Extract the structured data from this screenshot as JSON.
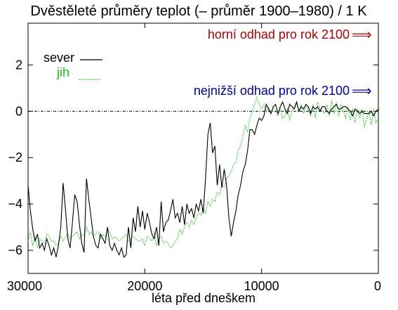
{
  "chart_data": {
    "type": "line",
    "title": "Dvěstěleté průměry teplot (– průměr 1900–1980) / 1 K",
    "xlabel": "léta před dneškem",
    "ylabel": "",
    "x_reversed": true,
    "xlim": [
      30000,
      0
    ],
    "ylim": [
      -7,
      3.8
    ],
    "x_ticks": [
      30000,
      20000,
      10000,
      0
    ],
    "x_tick_labels": [
      "30000",
      "20000",
      "10000",
      "0"
    ],
    "y_ticks": [
      2,
      0,
      -2,
      -4,
      -6
    ],
    "y_tick_labels": [
      "2",
      "0",
      "−2",
      "−4",
      "−6"
    ],
    "grid": false,
    "legend_position": "top-left",
    "colors": {
      "sever": "#000000",
      "jih": "#22bb22",
      "upper": "#aa0000",
      "lower": "#000099"
    },
    "annotations": [
      {
        "id": "upper",
        "text": "horní odhad pro rok 2100",
        "arrow": "⟹"
      },
      {
        "id": "lower",
        "text": "nejnižší odhad pro rok 2100",
        "arrow": "⟹"
      }
    ],
    "series": [
      {
        "name": "sever",
        "style": "solid",
        "x": [
          30000,
          29800,
          29600,
          29400,
          29200,
          29000,
          28800,
          28600,
          28400,
          28200,
          28000,
          27800,
          27600,
          27400,
          27200,
          27000,
          26800,
          26600,
          26400,
          26200,
          26000,
          25800,
          25600,
          25400,
          25200,
          25000,
          24800,
          24600,
          24400,
          24200,
          24000,
          23800,
          23600,
          23400,
          23200,
          23000,
          22800,
          22600,
          22400,
          22200,
          22000,
          21800,
          21600,
          21400,
          21200,
          21000,
          20800,
          20600,
          20400,
          20200,
          20000,
          19800,
          19600,
          19400,
          19200,
          19000,
          18800,
          18600,
          18400,
          18200,
          18000,
          17800,
          17600,
          17400,
          17200,
          17000,
          16800,
          16600,
          16400,
          16200,
          16000,
          15800,
          15600,
          15400,
          15200,
          15000,
          14800,
          14600,
          14400,
          14200,
          14000,
          13800,
          13600,
          13400,
          13200,
          13000,
          12800,
          12600,
          12400,
          12200,
          12000,
          11800,
          11600,
          11400,
          11200,
          11000,
          10800,
          10600,
          10400,
          10200,
          10000,
          9800,
          9600,
          9400,
          9200,
          9000,
          8800,
          8600,
          8400,
          8200,
          8000,
          7800,
          7600,
          7400,
          7200,
          7000,
          6800,
          6600,
          6400,
          6200,
          6000,
          5800,
          5600,
          5400,
          5200,
          5000,
          4800,
          4600,
          4400,
          4200,
          4000,
          3800,
          3600,
          3400,
          3200,
          3000,
          2800,
          2600,
          2400,
          2200,
          2000,
          1800,
          1600,
          1400,
          1200,
          1000,
          800,
          600,
          400,
          200,
          0
        ],
        "y": [
          -3.2,
          -4.3,
          -5.1,
          -5.6,
          -5.3,
          -5.9,
          -5.7,
          -6.0,
          -5.5,
          -5.8,
          -6.2,
          -5.9,
          -6.3,
          -5.8,
          -5.0,
          -3.1,
          -4.2,
          -5.5,
          -5.9,
          -4.8,
          -3.6,
          -3.9,
          -4.9,
          -5.7,
          -6.1,
          -2.9,
          -3.8,
          -4.6,
          -5.4,
          -5.8,
          -5.9,
          -5.3,
          -5.5,
          -5.7,
          -5.0,
          -5.8,
          -6.0,
          -5.7,
          -6.0,
          -6.2,
          -5.9,
          -6.3,
          -6.2,
          -5.0,
          -5.9,
          -4.6,
          -5.2,
          -4.1,
          -5.0,
          -4.3,
          -5.1,
          -4.4,
          -4.8,
          -5.3,
          -5.5,
          -5.0,
          -5.8,
          -3.9,
          -5.2,
          -4.8,
          -4.7,
          -4.3,
          -3.8,
          -4.6,
          -4.4,
          -4.8,
          -4.1,
          -4.9,
          -4.0,
          -4.4,
          -4.2,
          -4.6,
          -4.0,
          -4.3,
          -3.8,
          -4.4,
          -2.9,
          -1.0,
          -0.5,
          -1.8,
          -1.5,
          -3.2,
          -2.3,
          -3.3,
          -2.5,
          -3.2,
          -4.6,
          -5.4,
          -4.8,
          -4.3,
          -3.6,
          -3.2,
          -2.6,
          -2.3,
          -1.7,
          -0.8,
          -0.8,
          -1.0,
          -0.6,
          -0.3,
          -0.4,
          -0.2,
          0.3,
          0.1,
          -0.1,
          0.2,
          0.3,
          -0.1,
          0.2,
          0.4,
          0.1,
          -0.1,
          0.3,
          0.2,
          0.1,
          0.4,
          0.0,
          0.2,
          0.1,
          0.3,
          0.2,
          -0.1,
          0.2,
          0.1,
          0.2,
          0.0,
          0.2,
          0.2,
          0.0,
          -0.1,
          0.1,
          0.2,
          0.3,
          0.1,
          0.1,
          0.2,
          0.2,
          0.1,
          0.0,
          -0.2,
          0.1,
          0.0,
          -0.1,
          0.0,
          -0.1,
          -0.1,
          -0.1,
          0.0,
          -0.2,
          0.0,
          0.1
        ]
      },
      {
        "name": "jih",
        "style": "dotted",
        "x": [
          30000,
          29800,
          29600,
          29400,
          29200,
          29000,
          28800,
          28600,
          28400,
          28200,
          28000,
          27800,
          27600,
          27400,
          27200,
          27000,
          26800,
          26600,
          26400,
          26200,
          26000,
          25800,
          25600,
          25400,
          25200,
          25000,
          24800,
          24600,
          24400,
          24200,
          24000,
          23800,
          23600,
          23400,
          23200,
          23000,
          22800,
          22600,
          22400,
          22200,
          22000,
          21800,
          21600,
          21400,
          21200,
          21000,
          20800,
          20600,
          20400,
          20200,
          20000,
          19800,
          19600,
          19400,
          19200,
          19000,
          18800,
          18600,
          18400,
          18200,
          18000,
          17800,
          17600,
          17400,
          17200,
          17000,
          16800,
          16600,
          16400,
          16200,
          16000,
          15800,
          15600,
          15400,
          15200,
          15000,
          14800,
          14600,
          14400,
          14200,
          14000,
          13800,
          13600,
          13400,
          13200,
          13000,
          12800,
          12600,
          12400,
          12200,
          12000,
          11800,
          11600,
          11400,
          11200,
          11000,
          10800,
          10600,
          10400,
          10200,
          10000,
          9800,
          9600,
          9400,
          9200,
          9000,
          8800,
          8600,
          8400,
          8200,
          8000,
          7800,
          7600,
          7400,
          7200,
          7000,
          6800,
          6600,
          6400,
          6200,
          6000,
          5800,
          5600,
          5400,
          5200,
          5000,
          4800,
          4600,
          4400,
          4200,
          4000,
          3800,
          3600,
          3400,
          3200,
          3000,
          2800,
          2600,
          2400,
          2200,
          2000,
          1800,
          1600,
          1400,
          1200,
          1000,
          800,
          600,
          400,
          200,
          0
        ],
        "y": [
          -5.6,
          -5.2,
          -5.8,
          -5.4,
          -5.9,
          -5.5,
          -5.6,
          -5.7,
          -5.3,
          -5.4,
          -5.6,
          -5.6,
          -5.8,
          -5.7,
          -5.4,
          -5.6,
          -5.4,
          -5.3,
          -5.5,
          -5.4,
          -5.3,
          -5.2,
          -5.5,
          -5.3,
          -5.4,
          -5.0,
          -5.3,
          -5.2,
          -5.4,
          -5.3,
          -5.2,
          -5.5,
          -5.3,
          -5.4,
          -5.1,
          -5.2,
          -5.5,
          -5.4,
          -5.5,
          -5.6,
          -5.5,
          -5.4,
          -5.3,
          -5.6,
          -5.5,
          -5.4,
          -5.5,
          -5.6,
          -5.6,
          -5.5,
          -5.8,
          -5.4,
          -5.5,
          -5.6,
          -5.2,
          -5.8,
          -5.5,
          -5.4,
          -5.7,
          -5.6,
          -5.7,
          -5.9,
          -5.8,
          -5.6,
          -5.5,
          -5.1,
          -5.3,
          -5.0,
          -4.8,
          -5.0,
          -4.7,
          -4.9,
          -4.6,
          -4.4,
          -4.5,
          -4.2,
          -4.4,
          -3.9,
          -4.1,
          -3.8,
          -3.9,
          -3.5,
          -3.6,
          -3.2,
          -3.3,
          -2.9,
          -2.8,
          -2.6,
          -2.3,
          -2.2,
          -1.7,
          -1.5,
          -1.1,
          -0.6,
          -0.9,
          -0.3,
          0.0,
          0.3,
          0.6,
          0.3,
          0.1,
          0.3,
          0.0,
          0.2,
          -0.1,
          0.2,
          0.0,
          -0.2,
          0.1,
          -0.3,
          -0.2,
          0.1,
          -0.4,
          0.0,
          0.2,
          0.4,
          0.0,
          0.3,
          -0.1,
          0.2,
          0.1,
          -0.2,
          0.3,
          -0.3,
          0.4,
          0.1,
          0.0,
          -0.1,
          0.3,
          -0.2,
          0.5,
          -0.1,
          0.4,
          -0.2,
          0.3,
          0.0,
          -0.3,
          0.2,
          -0.4,
          0.1,
          -0.5,
          0.1,
          -0.3,
          0.1,
          -0.7,
          -0.3,
          0.0,
          -0.6,
          0.1,
          -0.5,
          -0.3
        ]
      }
    ]
  }
}
